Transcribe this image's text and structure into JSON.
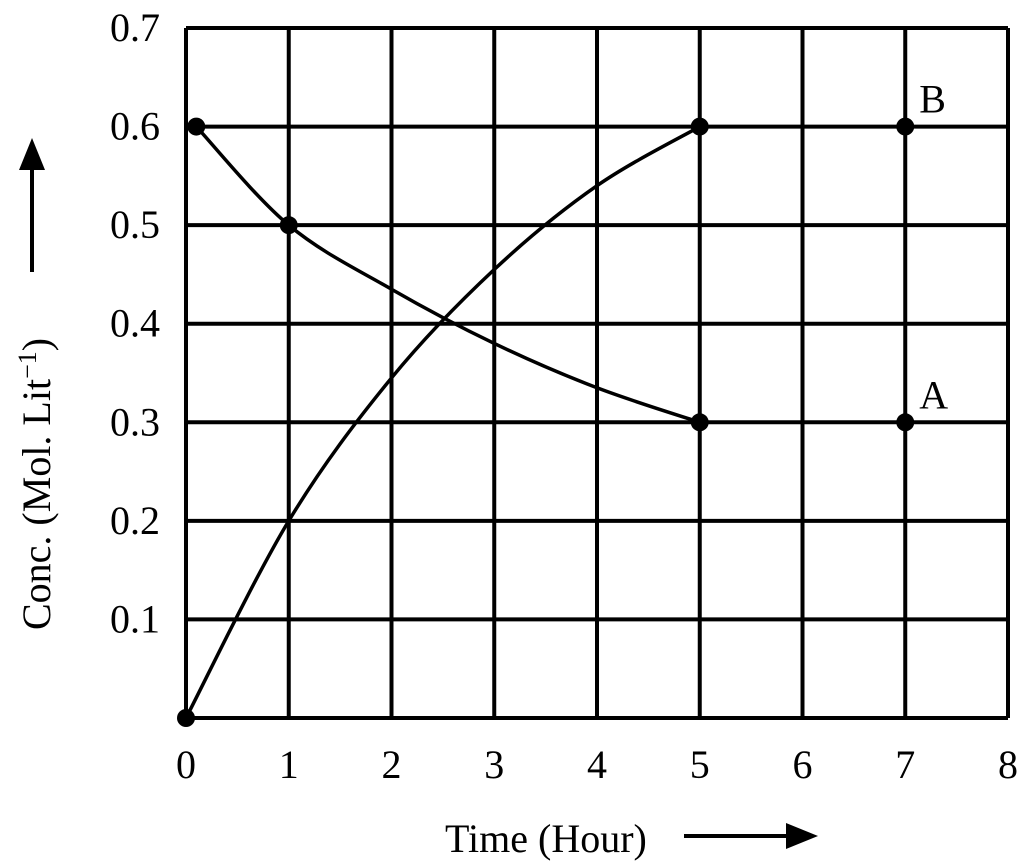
{
  "chart_data": {
    "type": "line",
    "title": "",
    "xlabel": "Time (Hour)",
    "ylabel": "Conc. (Mol. Lit",
    "ylabel_sup": "−1",
    "ylabel_close": ")",
    "xlim": [
      0,
      8
    ],
    "ylim": [
      0,
      0.7
    ],
    "grid": true,
    "x_ticks": [
      "0",
      "1",
      "2",
      "3",
      "4",
      "5",
      "6",
      "7",
      "8"
    ],
    "y_ticks": [
      "0.1",
      "0.2",
      "0.3",
      "0.4",
      "0.5",
      "0.6",
      "0.7"
    ],
    "series": [
      {
        "name": "A",
        "curve": [
          [
            0.1,
            0.6
          ],
          [
            1,
            0.5
          ],
          [
            2,
            0.435
          ],
          [
            3,
            0.38
          ],
          [
            4,
            0.335
          ],
          [
            5,
            0.3
          ]
        ],
        "points": [
          [
            0.1,
            0.6
          ],
          [
            1,
            0.5
          ],
          [
            5,
            0.3
          ],
          [
            7,
            0.3
          ]
        ]
      },
      {
        "name": "B",
        "curve": [
          [
            0,
            0
          ],
          [
            1,
            0.2
          ],
          [
            2,
            0.345
          ],
          [
            3,
            0.455
          ],
          [
            4,
            0.54
          ],
          [
            5,
            0.6
          ]
        ],
        "points": [
          [
            0,
            0
          ],
          [
            5,
            0.6
          ],
          [
            7,
            0.6
          ]
        ]
      }
    ]
  }
}
